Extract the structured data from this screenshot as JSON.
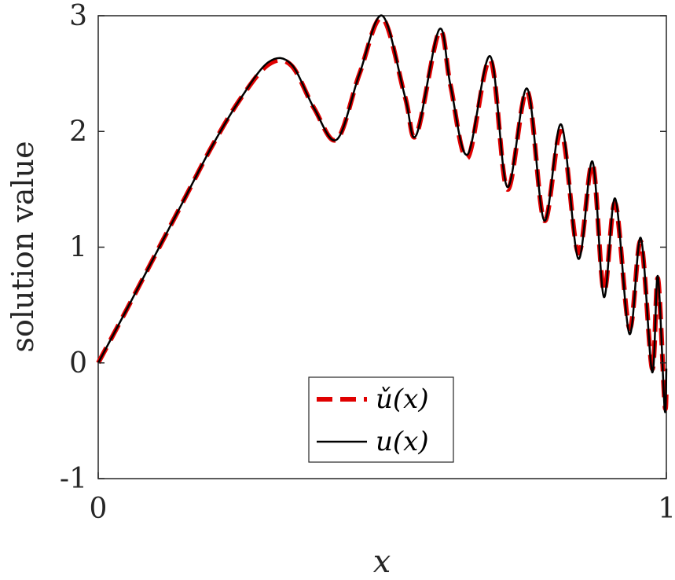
{
  "chart_data": {
    "type": "line",
    "xlabel": "x",
    "ylabel": "solution value",
    "xlim": [
      0,
      1
    ],
    "ylim": [
      -1,
      3
    ],
    "x_ticks": [
      0,
      1
    ],
    "x_tick_labels": [
      "0",
      "1"
    ],
    "y_ticks": [
      -1,
      0,
      1,
      2,
      3
    ],
    "y_tick_labels": [
      "-1",
      "0",
      "1",
      "2",
      "3"
    ],
    "grid": false,
    "legend_position": "bottom-center",
    "series": [
      {
        "name": "ǔ(x)",
        "style": "dashed",
        "color": "#e00000",
        "x": [
          0,
          0.05,
          0.1,
          0.15,
          0.2,
          0.25,
          0.3,
          0.34,
          0.38,
          0.42,
          0.46,
          0.5,
          0.54,
          0.56,
          0.6,
          0.62,
          0.65,
          0.69,
          0.72,
          0.755,
          0.785,
          0.815,
          0.845,
          0.87,
          0.89,
          0.91,
          0.935,
          0.955,
          0.975,
          0.985,
          0.997,
          1.0
        ],
        "y": [
          0,
          0.46,
          0.93,
          1.4,
          1.87,
          2.28,
          2.58,
          2.57,
          2.2,
          1.93,
          2.5,
          2.98,
          2.3,
          1.97,
          2.86,
          2.4,
          1.77,
          2.62,
          1.5,
          2.35,
          1.23,
          2.0,
          0.95,
          1.72,
          0.62,
          1.38,
          0.3,
          1.05,
          -0.05,
          0.73,
          -0.35,
          -0.2
        ]
      },
      {
        "name": "u(x)",
        "style": "solid",
        "color": "#000000",
        "x": [
          0,
          0.05,
          0.1,
          0.15,
          0.2,
          0.25,
          0.3,
          0.34,
          0.38,
          0.42,
          0.46,
          0.5,
          0.54,
          0.56,
          0.6,
          0.62,
          0.65,
          0.69,
          0.72,
          0.755,
          0.785,
          0.815,
          0.845,
          0.87,
          0.89,
          0.91,
          0.935,
          0.955,
          0.975,
          0.985,
          0.997,
          1.0
        ],
        "y": [
          0,
          0.46,
          0.93,
          1.4,
          1.87,
          2.28,
          2.6,
          2.58,
          2.2,
          1.93,
          2.5,
          3.0,
          2.3,
          1.97,
          2.88,
          2.4,
          1.8,
          2.65,
          1.52,
          2.37,
          1.23,
          2.06,
          0.9,
          1.74,
          0.57,
          1.42,
          0.25,
          1.08,
          -0.08,
          0.75,
          -0.4,
          -0.05
        ]
      }
    ]
  }
}
